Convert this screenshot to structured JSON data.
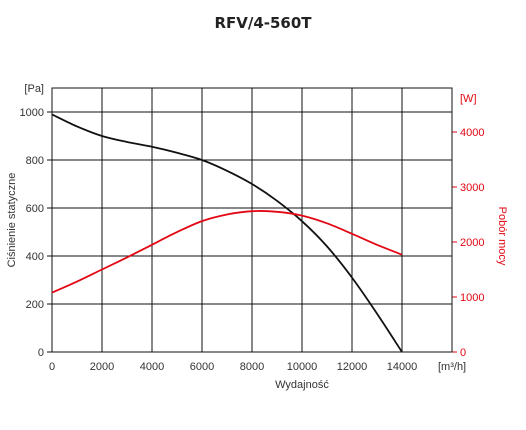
{
  "chart_data": {
    "type": "line",
    "title": "RFV/4-560T",
    "xlabel": "Wydajność",
    "x_unit": "[m³/h]",
    "ylabel_left": "Ciśnienie statyczne",
    "y_unit_left": "[Pa]",
    "ylabel_right": "Pobór mocy",
    "y_unit_right": "[W]",
    "xlim": [
      0,
      16000
    ],
    "ylim_left": [
      0,
      1100
    ],
    "ylim_right": [
      0,
      4000
    ],
    "x_ticks": [
      0,
      2000,
      4000,
      6000,
      8000,
      10000,
      12000,
      14000
    ],
    "y_ticks_left": [
      0,
      200,
      400,
      600,
      800,
      1000
    ],
    "y_ticks_right": [
      0,
      1000,
      2000,
      3000,
      4000
    ],
    "grid": true,
    "colors": {
      "pressure": "#111111",
      "power": "#e30613"
    },
    "series": [
      {
        "axis": "left",
        "x": [
          0,
          1000,
          2000,
          3000,
          4000,
          5000,
          6000,
          7000,
          8000,
          9000,
          10000,
          11000,
          12000,
          13000,
          14000
        ],
        "values": [
          990,
          940,
          900,
          875,
          855,
          830,
          800,
          755,
          700,
          630,
          545,
          440,
          310,
          160,
          0
        ]
      },
      {
        "axis": "right",
        "x": [
          0,
          1000,
          2000,
          3000,
          4000,
          5000,
          6000,
          7000,
          8000,
          9000,
          10000,
          11000,
          12000,
          13000,
          14000
        ],
        "values": [
          1080,
          1280,
          1500,
          1720,
          1950,
          2180,
          2380,
          2500,
          2560,
          2550,
          2480,
          2340,
          2150,
          1950,
          1770
        ]
      }
    ]
  }
}
